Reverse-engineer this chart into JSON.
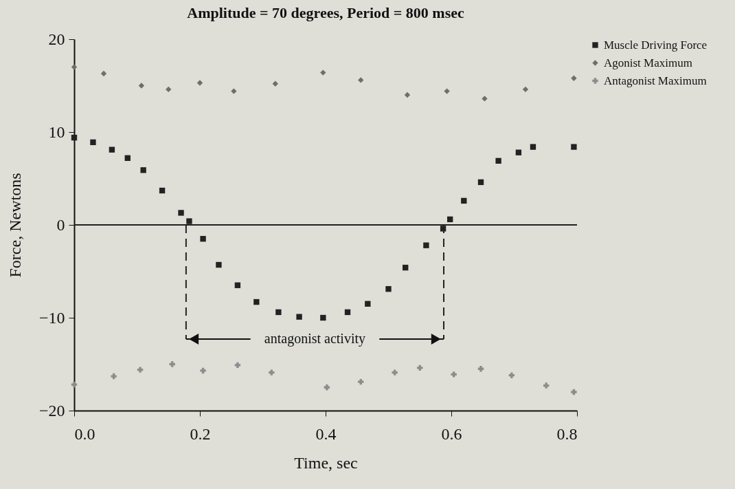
{
  "chart_data": {
    "type": "scatter",
    "title": "Amplitude = 70 degrees, Period = 800 msec",
    "xlabel": "Time, sec",
    "ylabel": "Force, Newtons",
    "xlim": [
      0,
      0.8
    ],
    "xticks": [
      {
        "value": 0,
        "label": "0.0"
      },
      0.2,
      0.4,
      0.6,
      0.8
    ],
    "ylim": [
      -20,
      20
    ],
    "yticks": [
      -20,
      -10,
      0,
      10,
      20
    ],
    "legend": "right",
    "series": [
      {
        "name": "Muscle Driving Force",
        "color": "#222222",
        "marker": "square",
        "x": [
          0,
          0.03,
          0.06,
          0.085,
          0.11,
          0.14,
          0.17,
          0.183,
          0.205,
          0.23,
          0.26,
          0.29,
          0.325,
          0.358,
          0.396,
          0.435,
          0.467,
          0.5,
          0.527,
          0.56,
          0.587,
          0.598,
          0.62,
          0.647,
          0.675,
          0.707,
          0.73,
          0.795
        ],
        "values": [
          9.4,
          8.9,
          8.1,
          7.2,
          5.9,
          3.7,
          1.3,
          0.4,
          -1.5,
          -4.3,
          -6.5,
          -8.3,
          -9.4,
          -9.9,
          -10,
          -9.4,
          -8.5,
          -6.9,
          -4.6,
          -2.2,
          -0.4,
          0.6,
          2.6,
          4.6,
          6.9,
          7.8,
          8.4,
          8.4
        ]
      },
      {
        "name": "Agonist Maximum",
        "color": "#6e6e6e",
        "marker": "diamond",
        "x": [
          0,
          0.047,
          0.107,
          0.15,
          0.2,
          0.254,
          0.32,
          0.396,
          0.456,
          0.53,
          0.593,
          0.653,
          0.718,
          0.795
        ],
        "values": [
          17,
          16.3,
          15,
          14.6,
          15.3,
          14.4,
          15.2,
          16.4,
          15.6,
          14,
          14.4,
          13.6,
          14.6,
          15.8
        ]
      },
      {
        "name": "Antagonist Maximum",
        "color": "#8c8c8c",
        "marker": "cross",
        "x": [
          0,
          0.063,
          0.105,
          0.156,
          0.205,
          0.26,
          0.314,
          0.402,
          0.456,
          0.51,
          0.55,
          0.604,
          0.647,
          0.696,
          0.751,
          0.795
        ],
        "values": [
          -17.2,
          -16.3,
          -15.6,
          -15,
          -15.7,
          -15.1,
          -15.9,
          -17.5,
          -16.9,
          -15.9,
          -15.4,
          -16.1,
          -15.5,
          -16.2,
          -17.3,
          -18
        ]
      }
    ],
    "ref_lines": [
      {
        "axis": "y",
        "value": 0,
        "color": "#222222",
        "line_style": "solid"
      },
      {
        "axis": "x",
        "value": 0.178,
        "color": "#222222",
        "line_style": "dashed"
      },
      {
        "axis": "x",
        "value": 0.588,
        "color": "#222222",
        "line_style": "dashed"
      }
    ],
    "annotations": [
      {
        "text": "antagonist activity",
        "x": 0.178,
        "y": -12.3
      }
    ]
  }
}
